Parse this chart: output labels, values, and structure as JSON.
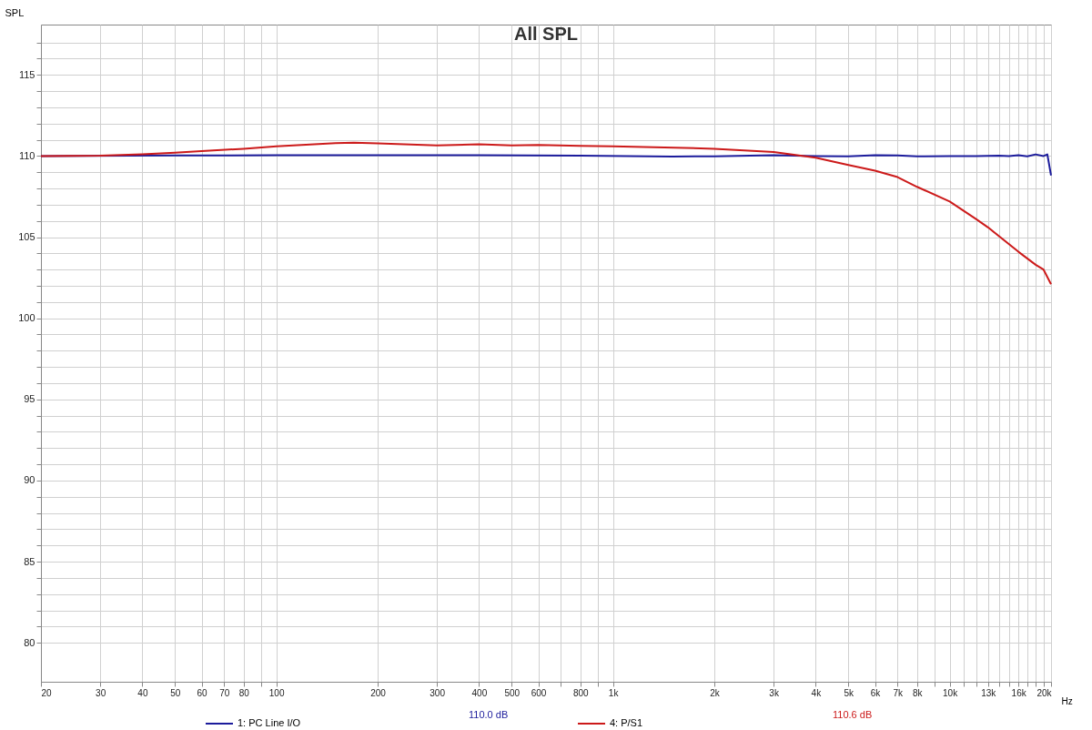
{
  "chart_data": {
    "type": "line",
    "title": "All SPL",
    "ylabel": "SPL",
    "xlim": [
      20,
      20000
    ],
    "ylim": [
      77.6,
      118.1
    ],
    "log": "x",
    "grid": true,
    "legend": "bottom",
    "marker": "none",
    "line_style": "solid",
    "xticks": [
      20,
      30,
      40,
      50,
      60,
      70,
      80,
      {
        "value": 90,
        "label": null
      },
      100,
      200,
      300,
      400,
      500,
      600,
      {
        "value": 700,
        "label": null
      },
      800,
      {
        "value": 900,
        "label": null
      },
      {
        "value": 1000,
        "label": "1k"
      },
      {
        "value": 2000,
        "label": "2k"
      },
      {
        "value": 3000,
        "label": "3k"
      },
      {
        "value": 4000,
        "label": "4k"
      },
      {
        "value": 5000,
        "label": "5k"
      },
      {
        "value": 6000,
        "label": "6k"
      },
      {
        "value": 7000,
        "label": "7k"
      },
      {
        "value": 8000,
        "label": "8k"
      },
      {
        "value": 9000,
        "label": null
      },
      {
        "value": 10000,
        "label": "10k"
      },
      {
        "value": 11000,
        "label": null
      },
      {
        "value": 12000,
        "label": null
      },
      {
        "value": 13000,
        "label": "13k"
      },
      {
        "value": 14000,
        "label": null
      },
      {
        "value": 15000,
        "label": null
      },
      {
        "value": 16000,
        "label": "16k"
      },
      {
        "value": 17000,
        "label": null
      },
      {
        "value": 18000,
        "label": null
      },
      {
        "value": 19000,
        "label": null
      },
      {
        "value": 20000,
        "label": "20k"
      }
    ],
    "xlabel": "Hz",
    "yticks": [
      80,
      {
        "value": 81,
        "label": null
      },
      {
        "value": 82,
        "label": null
      },
      {
        "value": 83,
        "label": null
      },
      {
        "value": 84,
        "label": null
      },
      85,
      {
        "value": 86,
        "label": null
      },
      {
        "value": 87,
        "label": null
      },
      {
        "value": 88,
        "label": null
      },
      {
        "value": 89,
        "label": null
      },
      90,
      {
        "value": 91,
        "label": null
      },
      {
        "value": 92,
        "label": null
      },
      {
        "value": 93,
        "label": null
      },
      {
        "value": 94,
        "label": null
      },
      95,
      {
        "value": 96,
        "label": null
      },
      {
        "value": 97,
        "label": null
      },
      {
        "value": 98,
        "label": null
      },
      {
        "value": 99,
        "label": null
      },
      100,
      {
        "value": 101,
        "label": null
      },
      {
        "value": 102,
        "label": null
      },
      {
        "value": 103,
        "label": null
      },
      {
        "value": 104,
        "label": null
      },
      105,
      {
        "value": 106,
        "label": null
      },
      {
        "value": 107,
        "label": null
      },
      {
        "value": 108,
        "label": null
      },
      {
        "value": 109,
        "label": null
      },
      110,
      {
        "value": 111,
        "label": null
      },
      {
        "value": 112,
        "label": null
      },
      {
        "value": 113,
        "label": null
      },
      {
        "value": 114,
        "label": null
      },
      115,
      {
        "value": 116,
        "label": null
      },
      {
        "value": 117,
        "label": null
      }
    ],
    "annotations": [
      "110.0 dB",
      "110.6 dB"
    ],
    "series": [
      {
        "name": "1: PC Line I/O",
        "color": "#1c1c9c",
        "x": [
          20,
          50,
          100,
          200,
          400,
          800,
          1500,
          2000,
          3000,
          4000,
          5000,
          6000,
          7000,
          8000,
          10000,
          12000,
          14000,
          15000,
          16000,
          17000,
          18000,
          19000,
          19500,
          20000
        ],
        "values": [
          110.0,
          110.03,
          110.05,
          110.05,
          110.05,
          110.02,
          109.97,
          109.98,
          110.05,
          110.0,
          109.98,
          110.05,
          110.03,
          109.98,
          110.0,
          110.0,
          110.02,
          110.0,
          110.05,
          109.98,
          110.1,
          110.0,
          110.1,
          108.8
        ]
      },
      {
        "name": "4: P/S1",
        "color": "#cc1a1a",
        "x": [
          20,
          30,
          40,
          50,
          60,
          80,
          100,
          150,
          170,
          200,
          300,
          400,
          500,
          600,
          800,
          1000,
          2000,
          3000,
          4000,
          5000,
          6000,
          7000,
          8000,
          10000,
          12000,
          13000,
          16000,
          18000,
          19000,
          20000
        ],
        "values": [
          110.0,
          110.02,
          110.1,
          110.2,
          110.3,
          110.45,
          110.6,
          110.8,
          110.82,
          110.78,
          110.65,
          110.72,
          110.65,
          110.68,
          110.62,
          110.6,
          110.45,
          110.25,
          109.9,
          109.45,
          109.1,
          108.7,
          108.1,
          107.2,
          106.1,
          105.6,
          104.1,
          103.3,
          103.0,
          102.1
        ]
      }
    ]
  }
}
